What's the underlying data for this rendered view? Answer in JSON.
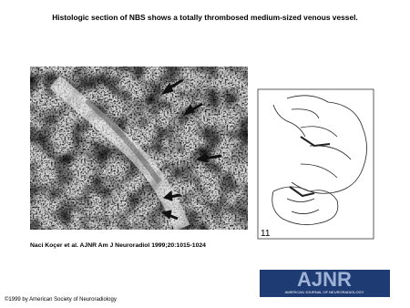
{
  "header": {
    "title": "Histologic section of NBS shows a totally thrombosed medium-sized venous vessel."
  },
  "figure": {
    "panel_label": "11"
  },
  "citation": "Naci Koçer et al. AJNR Am J Neuroradiol 1999;20:1015-1024",
  "logo": {
    "title": "AJNR",
    "subtitle": "AMERICAN JOURNAL OF NEURORADIOLOGY"
  },
  "footer": {
    "copyright": "©1999 by American Society of Neuroradiology"
  }
}
